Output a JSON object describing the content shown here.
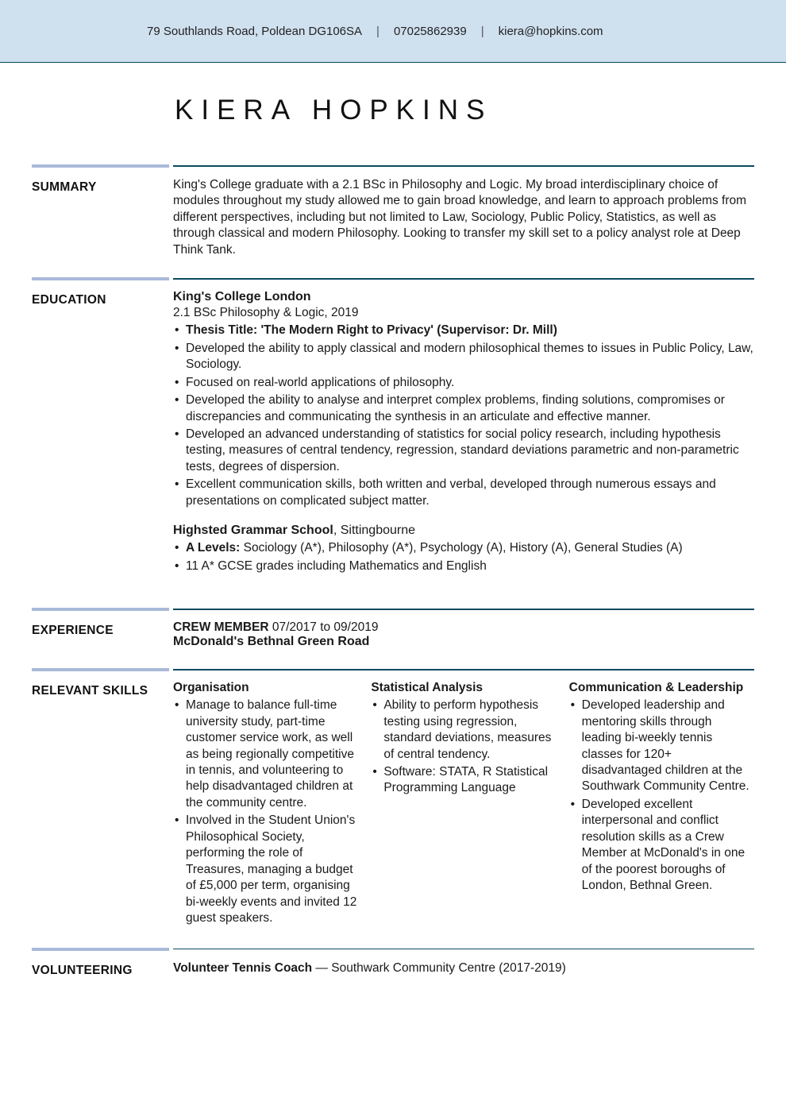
{
  "header": {
    "address": "79 Southlands Road, Poldean DG106SA",
    "phone": "07025862939",
    "email": "kiera@hopkins.com",
    "separator": "|",
    "band_bg": "#cfe0ef",
    "band_border": "#0b4a5f"
  },
  "name": "KIERA HOPKINS",
  "accent_bar_color": "#a9b9d9",
  "rule_color": "#0b4a5f",
  "background_color": "#ffffff",
  "sections": {
    "summary": {
      "label": "SUMMARY",
      "text": "King's College graduate with a 2.1 BSc in Philosophy and Logic. My broad interdisciplinary choice of modules throughout my study allowed me to gain broad knowledge, and learn to approach problems from different perspectives, including but not limited to Law, Sociology, Public Policy, Statistics, as well as through classical and modern Philosophy. Looking to transfer my skill set to a policy analyst role at Deep Think Tank."
    },
    "education": {
      "label": "EDUCATION",
      "entries": [
        {
          "school": "King's College London",
          "degree": "2.1 BSc Philosophy & Logic, 2019",
          "thesis_prefix": "Thesis Title: 'The Modern Right to Privacy' (Supervisor: Dr. Mill)",
          "bullets": [
            "Developed the ability to apply classical and modern philosophical themes to issues in Public Policy, Law, Sociology.",
            "Focused on real-world applications of philosophy.",
            "Developed the ability to analyse and interpret complex problems, finding solutions, compromises or discrepancies and communicating the synthesis in an articulate and effective manner.",
            "Developed an advanced understanding of statistics for social policy research, including hypothesis testing, measures of central tendency, regression, standard deviations parametric and non-parametric tests, degrees of dispersion.",
            "Excellent communication skills, both written and verbal, developed through numerous essays and presentations on complicated subject matter."
          ]
        },
        {
          "school": "Highsted Grammar School",
          "location": ", Sittingbourne",
          "bullets_rich": [
            {
              "lead": "A Levels:",
              "rest": " Sociology (A*), Philosophy (A*), Psychology (A), History (A), General Studies (A)"
            },
            {
              "lead": "",
              "rest": "11 A* GCSE grades including Mathematics and English"
            }
          ]
        }
      ]
    },
    "experience": {
      "label": "EXPERIENCE",
      "role": "CREW MEMBER",
      "dates": " 07/2017 to 09/2019",
      "employer": "McDonald's Bethnal Green Road"
    },
    "skills": {
      "label": "RELEVANT SKILLS",
      "columns": [
        {
          "title": "Organisation",
          "bullets": [
            "Manage to balance full-time university study, part-time customer service work, as well as being regionally competitive in tennis, and volunteering to help disadvantaged children at the community centre.",
            "Involved in the Student Union's Philosophical Society, performing the role of Treasures, managing a budget of £5,000 per term, organising bi-weekly events and invited 12 guest speakers."
          ]
        },
        {
          "title": "Statistical Analysis",
          "bullets": [
            "Ability to perform hypothesis testing using regression, standard deviations, measures of central tendency.",
            "Software: STATA, R Statistical Programming Language"
          ]
        },
        {
          "title": "Communication & Leadership",
          "bullets": [
            "Developed leadership and mentoring skills through leading bi-weekly tennis classes for 120+ disadvantaged children at the Southwark Community Centre.",
            "Developed excellent interpersonal and conflict resolution skills as a Crew Member at McDonald's in one of the poorest boroughs of London, Bethnal Green."
          ]
        }
      ]
    },
    "volunteering": {
      "label": "VOLUNTEERING",
      "role": "Volunteer Tennis Coach",
      "sep": " — ",
      "org": "Southwark Community Centre (2017-2019)"
    }
  }
}
